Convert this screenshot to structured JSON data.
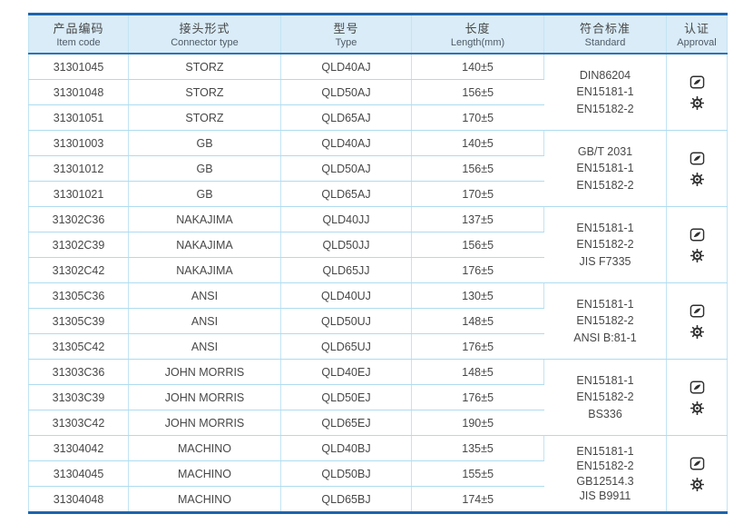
{
  "colors": {
    "border_blue": "#1d64ae",
    "header_bg": "#d9ecf8",
    "header_line": "#2e74b6",
    "row_line": "#aedcef",
    "col_line": "#c2e4f4",
    "text": "#474747",
    "icon": "#2f2f2f"
  },
  "table": {
    "columns": [
      {
        "zh": "产品编码",
        "en": "Item code"
      },
      {
        "zh": "接头形式",
        "en": "Connector type"
      },
      {
        "zh": "型号",
        "en": "Type"
      },
      {
        "zh": "长度",
        "en": "Length(mm)"
      },
      {
        "zh": "符合标准",
        "en": "Standard"
      },
      {
        "zh": "认证",
        "en": "Approval"
      }
    ],
    "groups": [
      {
        "rows": [
          {
            "code": "31301045",
            "connector": "STORZ",
            "type": "QLD40AJ",
            "length": "140±5"
          },
          {
            "code": "31301048",
            "connector": "STORZ",
            "type": "QLD50AJ",
            "length": "156±5"
          },
          {
            "code": "31301051",
            "connector": "STORZ",
            "type": "QLD65AJ",
            "length": "170±5"
          }
        ],
        "standards": [
          "DIN86204",
          "EN15181-1",
          "EN15182-2"
        ],
        "approvals": [
          "cert-badge-icon",
          "gear-badge-icon"
        ]
      },
      {
        "rows": [
          {
            "code": "31301003",
            "connector": "GB",
            "type": "QLD40AJ",
            "length": "140±5"
          },
          {
            "code": "31301012",
            "connector": "GB",
            "type": "QLD50AJ",
            "length": "156±5"
          },
          {
            "code": "31301021",
            "connector": "GB",
            "type": "QLD65AJ",
            "length": "170±5"
          }
        ],
        "standards": [
          "GB/T 2031",
          "EN15181-1",
          "EN15182-2"
        ],
        "approvals": [
          "cert-badge-icon",
          "gear-badge-icon"
        ]
      },
      {
        "rows": [
          {
            "code": "31302C36",
            "connector": "NAKAJIMA",
            "type": "QLD40JJ",
            "length": "137±5"
          },
          {
            "code": "31302C39",
            "connector": "NAKAJIMA",
            "type": "QLD50JJ",
            "length": "156±5"
          },
          {
            "code": "31302C42",
            "connector": "NAKAJIMA",
            "type": "QLD65JJ",
            "length": "176±5"
          }
        ],
        "standards": [
          "EN15181-1",
          "EN15182-2",
          "JIS F7335"
        ],
        "approvals": [
          "cert-badge-icon",
          "gear-badge-icon"
        ]
      },
      {
        "rows": [
          {
            "code": "31305C36",
            "connector": "ANSI",
            "type": "QLD40UJ",
            "length": "130±5"
          },
          {
            "code": "31305C39",
            "connector": "ANSI",
            "type": "QLD50UJ",
            "length": "148±5"
          },
          {
            "code": "31305C42",
            "connector": "ANSI",
            "type": "QLD65UJ",
            "length": "176±5"
          }
        ],
        "standards": [
          "EN15181-1",
          "EN15182-2",
          "ANSI B:81-1"
        ],
        "approvals": [
          "cert-badge-icon",
          "gear-badge-icon"
        ]
      },
      {
        "rows": [
          {
            "code": "31303C36",
            "connector": "JOHN MORRIS",
            "type": "QLD40EJ",
            "length": "148±5"
          },
          {
            "code": "31303C39",
            "connector": "JOHN MORRIS",
            "type": "QLD50EJ",
            "length": "176±5"
          },
          {
            "code": "31303C42",
            "connector": "JOHN MORRIS",
            "type": "QLD65EJ",
            "length": "190±5"
          }
        ],
        "standards": [
          "EN15181-1",
          "EN15182-2",
          "BS336"
        ],
        "approvals": [
          "cert-badge-icon",
          "gear-badge-icon"
        ]
      },
      {
        "rows": [
          {
            "code": "31304042",
            "connector": "MACHINO",
            "type": "QLD40BJ",
            "length": "135±5"
          },
          {
            "code": "31304045",
            "connector": "MACHINO",
            "type": "QLD50BJ",
            "length": "155±5"
          },
          {
            "code": "31304048",
            "connector": "MACHINO",
            "type": "QLD65BJ",
            "length": "174±5"
          }
        ],
        "standards": [
          "EN15181-1",
          "EN15182-2",
          "GB12514.3",
          "JIS B9911"
        ],
        "approvals": [
          "cert-badge-icon",
          "gear-badge-icon"
        ]
      }
    ]
  }
}
